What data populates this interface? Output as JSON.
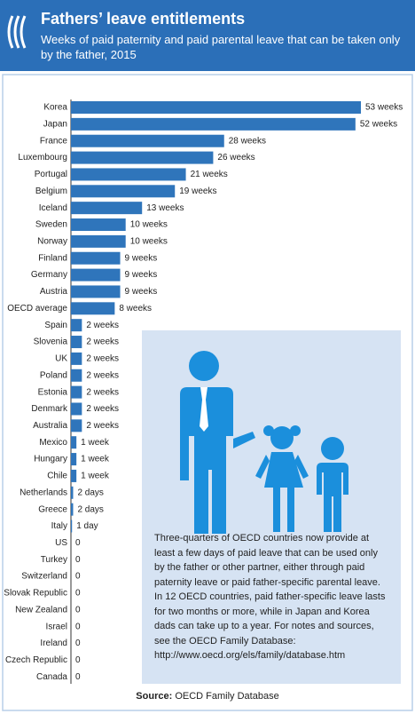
{
  "chart_data": {
    "type": "hbar",
    "title": "Fathers’ leave entitlements",
    "subtitle": "Weeks of paid paternity and paid parental leave that can be taken only by the father, 2015",
    "categories": [
      "Korea",
      "Japan",
      "France",
      "Luxembourg",
      "Portugal",
      "Belgium",
      "Iceland",
      "Sweden",
      "Norway",
      "Finland",
      "Germany",
      "Austria",
      "OECD average",
      "Spain",
      "Slovenia",
      "UK",
      "Poland",
      "Estonia",
      "Denmark",
      "Australia",
      "Mexico",
      "Hungary",
      "Chile",
      "Netherlands",
      "Greece",
      "Italy",
      "US",
      "Turkey",
      "Switzerland",
      "Slovak Republic",
      "New Zealand",
      "Israel",
      "Ireland",
      "Czech Republic",
      "Canada"
    ],
    "values": [
      53,
      52,
      28,
      26,
      21,
      19,
      13,
      10,
      10,
      9,
      9,
      9,
      8,
      2,
      2,
      2,
      2,
      2,
      2,
      2,
      1,
      1,
      1,
      0.4,
      0.4,
      0.2,
      0,
      0,
      0,
      0,
      0,
      0,
      0,
      0,
      0
    ],
    "value_labels": [
      "53 weeks",
      "52 weeks",
      "28 weeks",
      "26 weeks",
      "21 weeks",
      "19 weeks",
      "13 weeks",
      "10 weeks",
      "10 weeks",
      "9 weeks",
      "9 weeks",
      "9 weeks",
      "8 weeks",
      "2 weeks",
      "2 weeks",
      "2 weeks",
      "2 weeks",
      "2 weeks",
      "2 weeks",
      "2 weeks",
      "1 week",
      "1 week",
      "1 week",
      "2 days",
      "2 days",
      "1 day",
      "0",
      "0",
      "0",
      "0",
      "0",
      "0",
      "0",
      "0",
      "0"
    ],
    "color": "#2f75bb",
    "note": "Three-quarters of OECD countries now provide at least a few days of paid leave that can be used only by the father or other partner, either through paid paternity leave or paid father-specific parental leave. In 12 OECD countries, paid father-specific leave lasts for two months or more, while in Japan and Korea dads can take up to a year. For notes and sources, see the OECD Family Database: http://www.oecd.org/els/family/database.htm",
    "source_label": "Source:",
    "source": "OECD Family Database"
  }
}
